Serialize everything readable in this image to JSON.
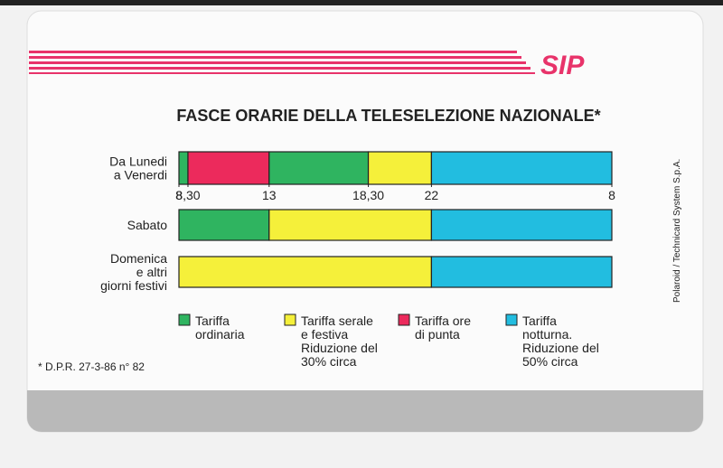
{
  "logo": "SIP",
  "chart_data": {
    "type": "timeline",
    "title": "FASCE ORARIE DELLA TELESELEZIONE NAZIONALE*",
    "categories": [
      [
        "Da Lunedi",
        "a Venerdi"
      ],
      [
        "Sabato"
      ],
      [
        "Domenica",
        "e altri",
        "giorni festivi"
      ]
    ],
    "xlim": [
      8,
      32
    ],
    "xticks": [
      8,
      {
        "value": 8.5,
        "label": "8,30"
      },
      13,
      {
        "value": 18.5,
        "label": "18,30"
      },
      22,
      {
        "value": 32,
        "label": "8"
      }
    ],
    "rows": [
      [
        {
          "start": 8,
          "end": 8.5,
          "tariff": 0
        },
        {
          "start": 8.5,
          "end": 13,
          "tariff": 2
        },
        {
          "start": 13,
          "end": 18.5,
          "tariff": 0
        },
        {
          "start": 18.5,
          "end": 22,
          "tariff": 1
        },
        {
          "start": 22,
          "end": 32,
          "tariff": 3
        }
      ],
      [
        {
          "start": 8,
          "end": 13,
          "tariff": 0
        },
        {
          "start": 13,
          "end": 22,
          "tariff": 1
        },
        {
          "start": 22,
          "end": 32,
          "tariff": 3
        }
      ],
      [
        {
          "start": 8,
          "end": 22,
          "tariff": 1
        },
        {
          "start": 22,
          "end": 32,
          "tariff": 3
        }
      ]
    ],
    "tariffs": [
      {
        "name": [
          "Tariffa",
          "ordinaria"
        ],
        "color": "#2fb460"
      },
      {
        "name": [
          "Tariffa serale",
          "e festiva",
          "Riduzione del",
          "30% circa"
        ],
        "color": "#f5f03a"
      },
      {
        "name": [
          "Tariffa ore",
          "di punta"
        ],
        "color": "#ec2a5c"
      },
      {
        "name": [
          "Tariffa",
          "notturna.",
          "Riduzione del",
          "50% circa"
        ],
        "color": "#22bde0"
      }
    ],
    "footnote": "* D.P.R. 27-3-86 n° 82",
    "side_text": "Polaroid / Technicard System S.p.A."
  }
}
